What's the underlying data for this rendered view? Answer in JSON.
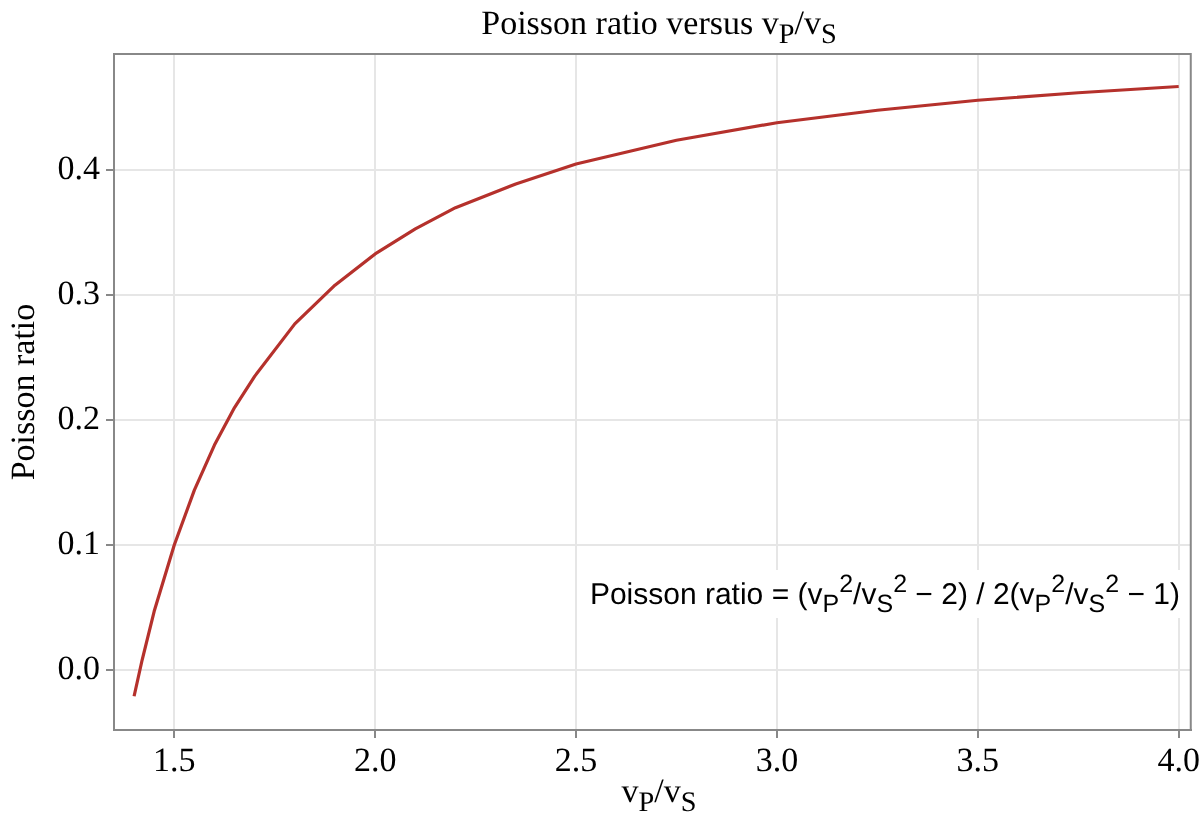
{
  "chart_data": {
    "type": "line",
    "title": "Poisson ratio versus v$_{P}$/v$_{S}$",
    "xlabel": "v$_{P}$/v$_{S}$",
    "ylabel": "Poisson ratio",
    "annotations": [
      "Poisson ratio = (v$_{P}$$^{2}$/v$_{S}$$^{2}$ − 2) / 2(v$_{P}$$^{2}$/v$_{S}$$^{2}$ − 1)"
    ],
    "x": [
      1.4,
      1.42,
      1.45,
      1.5,
      1.55,
      1.6,
      1.65,
      1.7,
      1.8,
      1.9,
      2.0,
      2.1,
      2.2,
      2.35,
      2.5,
      2.75,
      3.0,
      3.25,
      3.5,
      3.75,
      4.0
    ],
    "series": [
      {
        "color": "#b5312c",
        "values": [
          -0.021,
          0.008,
          0.047,
          0.1,
          0.144,
          0.18,
          0.21,
          0.235,
          0.277,
          0.308,
          0.333,
          0.353,
          0.37,
          0.389,
          0.405,
          0.424,
          0.438,
          0.448,
          0.456,
          0.462,
          0.467
        ]
      }
    ],
    "xlim": [
      1.35,
      4.03
    ],
    "ylim": [
      -0.048,
      0.493
    ],
    "xticks": [
      {
        "value": 1.5,
        "label": "1.5"
      },
      {
        "value": 2,
        "label": "2.0"
      },
      {
        "value": 2.5,
        "label": "2.5"
      },
      {
        "value": 3,
        "label": "3.0"
      },
      {
        "value": 3.5,
        "label": "3.5"
      },
      {
        "value": 4,
        "label": "4.0"
      }
    ],
    "yticks": [
      {
        "value": 0,
        "label": "0.0"
      },
      {
        "value": 0.1,
        "label": "0.1"
      },
      {
        "value": 0.2,
        "label": "0.2"
      },
      {
        "value": 0.3,
        "label": "0.3"
      },
      {
        "value": 0.4,
        "label": "0.4"
      }
    ],
    "grid": true,
    "legend": false,
    "marker": "none",
    "line_style": "solid"
  }
}
